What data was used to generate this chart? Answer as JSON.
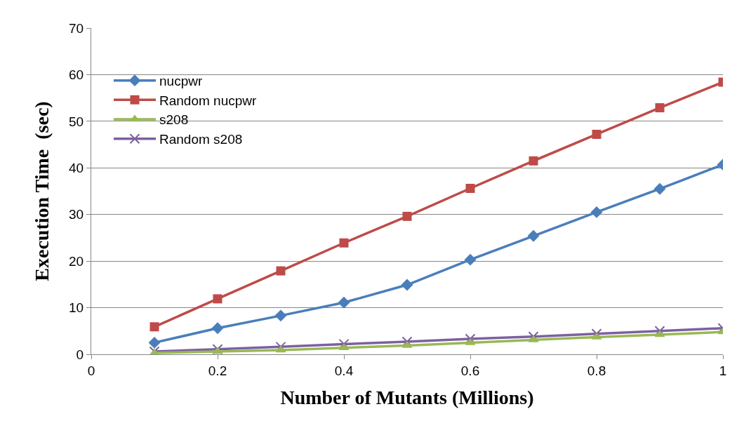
{
  "chart_data": {
    "type": "line",
    "xlabel": "Number of Mutants (Millions)",
    "ylabel": "Execution Time  (sec)",
    "x": [
      0.1,
      0.2,
      0.3,
      0.4,
      0.5,
      0.6,
      0.7,
      0.8,
      0.9,
      1
    ],
    "series": [
      {
        "name": "nucpwr",
        "color": "#4a7ebb",
        "marker": "diamond",
        "values": [
          2.5,
          5.6,
          8.3,
          11.1,
          14.9,
          20.3,
          25.4,
          30.5,
          35.5,
          40.7
        ]
      },
      {
        "name": "Random nucpwr",
        "color": "#be4b48",
        "marker": "square",
        "values": [
          5.9,
          11.9,
          17.9,
          23.9,
          29.6,
          35.6,
          41.5,
          47.2,
          52.9,
          58.4
        ]
      },
      {
        "name": "s208",
        "color": "#98b954",
        "marker": "triangle",
        "values": [
          0.3,
          0.6,
          0.9,
          1.4,
          1.9,
          2.5,
          3.1,
          3.7,
          4.2,
          4.8
        ]
      },
      {
        "name": "Random s208",
        "color": "#7d60a0",
        "marker": "cross",
        "values": [
          0.6,
          1.1,
          1.6,
          2.2,
          2.7,
          3.3,
          3.8,
          4.4,
          5.0,
          5.6
        ]
      }
    ],
    "xlim": [
      0,
      1
    ],
    "xticks": [
      0,
      0.2,
      0.4,
      0.6,
      0.8,
      1
    ],
    "ylim": [
      0,
      70
    ],
    "yticks": [
      0,
      10,
      20,
      30,
      40,
      50,
      60,
      70
    ],
    "grid": "y",
    "legend": "top left",
    "line_style": "solid"
  }
}
